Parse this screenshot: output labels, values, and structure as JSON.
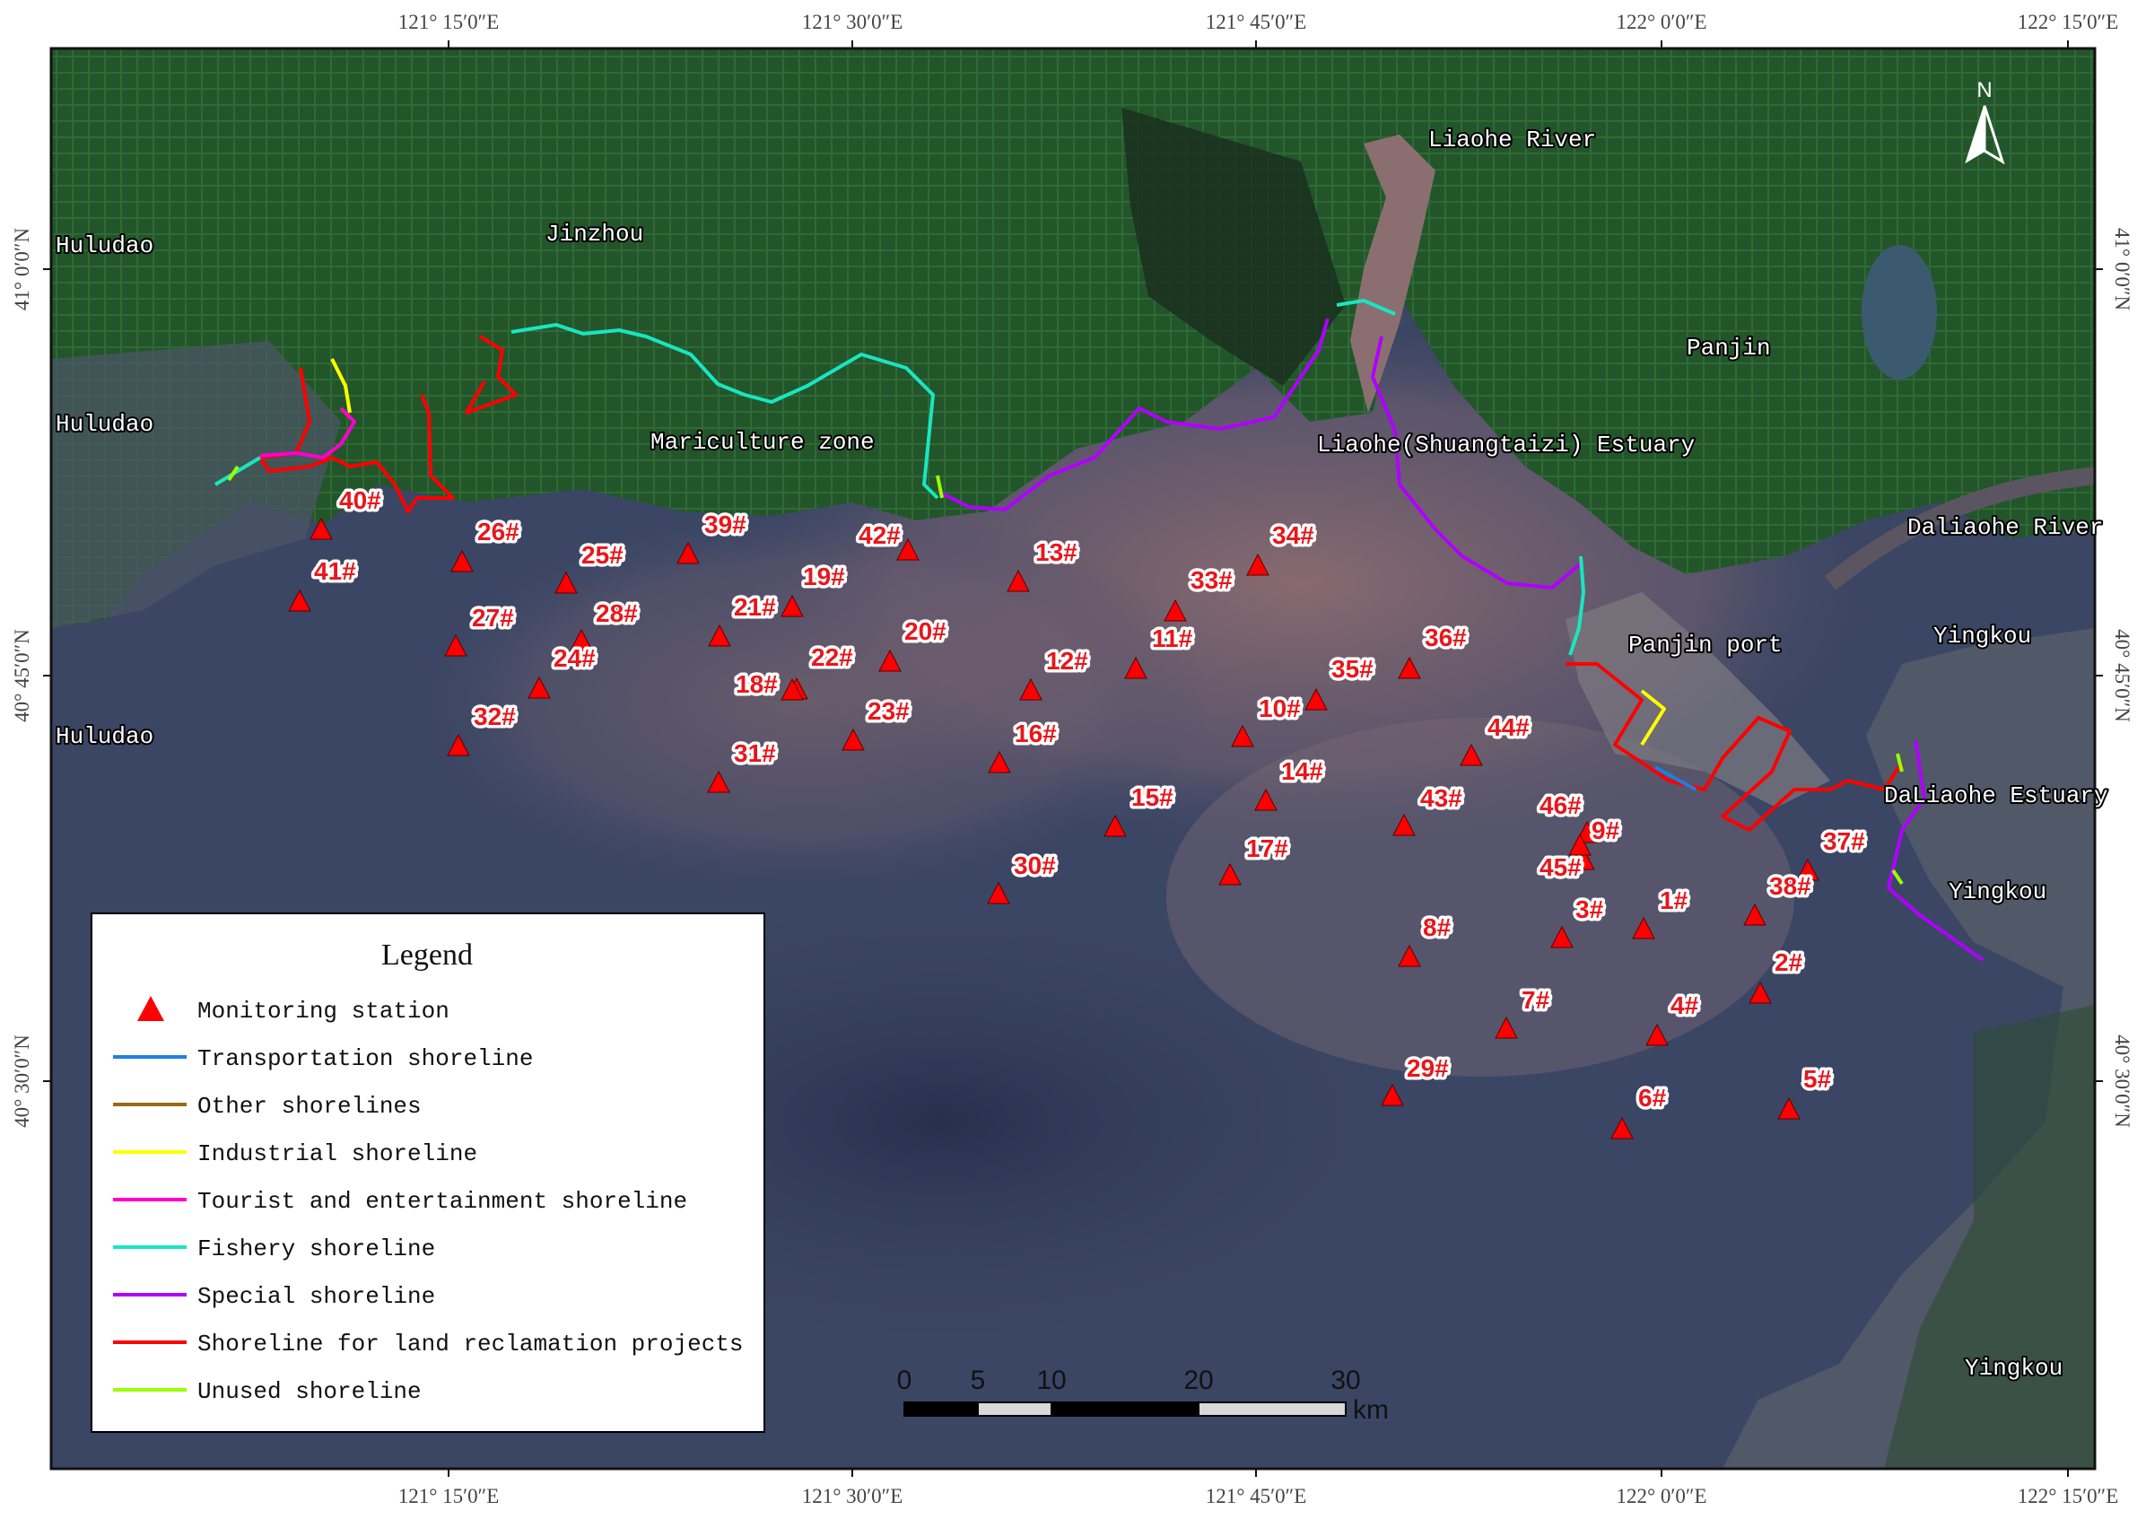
{
  "top_coords": [
    "121° 15′0″E",
    "121° 30′0″E",
    "121° 45′0″E",
    "122° 0′0″E",
    "122° 15′0″E"
  ],
  "bottom_coords": [
    "121° 15′0″E",
    "121° 30′0″E",
    "121° 45′0″E",
    "122° 0′0″E",
    "122° 15′0″E"
  ],
  "left_coords": [
    "41° 0′0″N",
    "40° 45′0″N",
    "40° 30′0″N"
  ],
  "right_coords": [
    "41° 0′0″N",
    "40° 45′0″N",
    "40° 30′0″N"
  ],
  "place_labels": {
    "huludao_1": "Huludao",
    "huludao_2": "Huludao",
    "huludao_3": "Huludao",
    "jinzhou": "Jinzhou",
    "liaohe_river": "Liaohe River",
    "panjin": "Panjin",
    "mariculture": "Mariculture zone",
    "liaohe_estuary": "Liaohe(Shuangtaizi) Estuary",
    "daliaohe_river": "Daliaohe River",
    "yingkou_1": "Yingkou",
    "panjin_port": "Panjin port",
    "daliaohe_estuary": "DaLiaohe Estuary",
    "yingkou_2": "Yingkou",
    "yingkou_3": "Yingkou"
  },
  "stations": [
    {
      "id": "1#"
    },
    {
      "id": "2#"
    },
    {
      "id": "3#"
    },
    {
      "id": "4#"
    },
    {
      "id": "5#"
    },
    {
      "id": "6#"
    },
    {
      "id": "7#"
    },
    {
      "id": "8#"
    },
    {
      "id": "9#"
    },
    {
      "id": "10#"
    },
    {
      "id": "11#"
    },
    {
      "id": "12#"
    },
    {
      "id": "13#"
    },
    {
      "id": "14#"
    },
    {
      "id": "15#"
    },
    {
      "id": "16#"
    },
    {
      "id": "17#"
    },
    {
      "id": "18#"
    },
    {
      "id": "19#"
    },
    {
      "id": "20#"
    },
    {
      "id": "21#"
    },
    {
      "id": "22#"
    },
    {
      "id": "23#"
    },
    {
      "id": "24#"
    },
    {
      "id": "25#"
    },
    {
      "id": "26#"
    },
    {
      "id": "27#"
    },
    {
      "id": "28#"
    },
    {
      "id": "29#"
    },
    {
      "id": "30#"
    },
    {
      "id": "31#"
    },
    {
      "id": "32#"
    },
    {
      "id": "33#"
    },
    {
      "id": "34#"
    },
    {
      "id": "35#"
    },
    {
      "id": "36#"
    },
    {
      "id": "37#"
    },
    {
      "id": "38#"
    },
    {
      "id": "39#"
    },
    {
      "id": "40#"
    },
    {
      "id": "41#"
    },
    {
      "id": "42#"
    },
    {
      "id": "43#"
    },
    {
      "id": "44#"
    },
    {
      "id": "45#"
    },
    {
      "id": "46#"
    }
  ],
  "legend": {
    "title": "Legend",
    "items": [
      {
        "label": "Monitoring station",
        "color": "#ff0000",
        "kind": "triangle"
      },
      {
        "label": "Transportation shoreline",
        "color": "#1e7fe0",
        "kind": "line"
      },
      {
        "label": "Other shorelines",
        "color": "#9a6a14",
        "kind": "line"
      },
      {
        "label": "Industrial shoreline",
        "color": "#ffff00",
        "kind": "line"
      },
      {
        "label": "Tourist and entertainment shoreline",
        "color": "#ff00cc",
        "kind": "line"
      },
      {
        "label": "Fishery shoreline",
        "color": "#19e6c0",
        "kind": "line"
      },
      {
        "label": "Special shoreline",
        "color": "#b000ff",
        "kind": "line"
      },
      {
        "label": "Shoreline for land reclamation projects",
        "color": "#ff0000",
        "kind": "line"
      },
      {
        "label": "Unused shoreline",
        "color": "#99ff00",
        "kind": "line"
      }
    ]
  },
  "scale_bar": {
    "ticks": [
      "0",
      "5",
      "10",
      "20",
      "30"
    ],
    "unit": "km"
  },
  "north_arrow": {
    "label": "N",
    "icon": "north-arrow-icon"
  },
  "colors": {
    "land": "#1f4b28",
    "sea": "#3b4664",
    "plume": "#8a6d73",
    "station": "#ff0000"
  }
}
